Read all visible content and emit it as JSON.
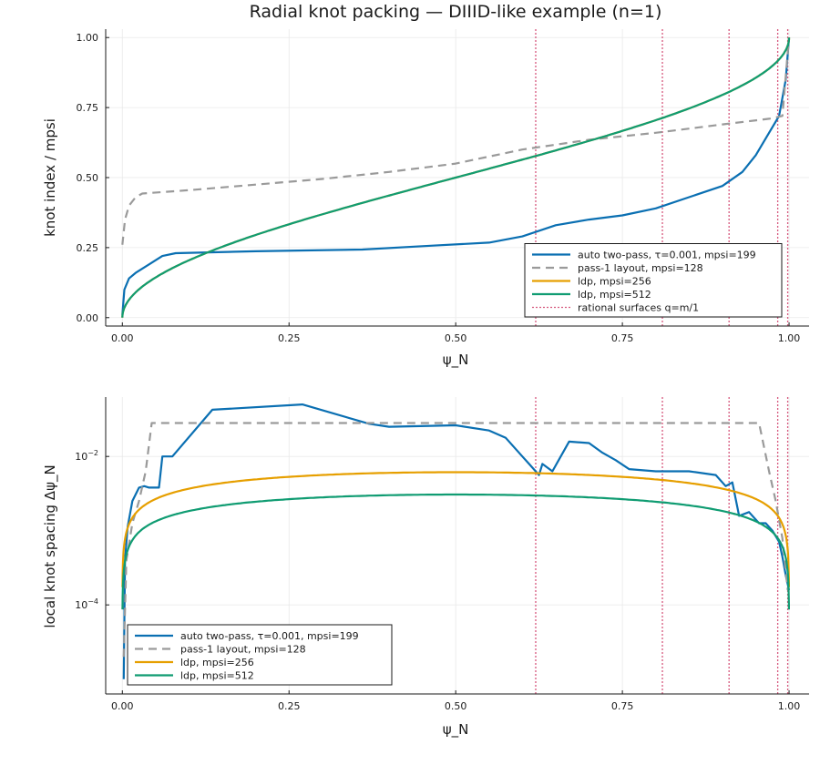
{
  "title": "Radial knot packing — DIIID-like example (n=1)",
  "colors": {
    "auto": "#0a6fb2",
    "pass1": "#9a9a9a",
    "ldp256": "#e69f00",
    "ldp512": "#109c72",
    "rational": "#d6577d"
  },
  "chart_data": [
    {
      "type": "line",
      "title": "Radial knot packing — DIIID-like example (n=1)",
      "xlabel": "ψ_N",
      "ylabel": "knot index / mpsi",
      "xlim": [
        0,
        1
      ],
      "ylim": [
        0,
        1
      ],
      "y_scale": "linear",
      "xticks": [
        "0.00",
        "0.25",
        "0.50",
        "0.75",
        "1.00"
      ],
      "yticks": [
        "0.00",
        "0.25",
        "0.50",
        "0.75",
        "1.00"
      ],
      "grid": true,
      "legend_position": "bottom-right",
      "rational_surfaces": [
        0.62,
        0.81,
        0.91,
        0.983,
        0.998
      ],
      "series": [
        {
          "name": "auto two-pass, τ=0.001, mpsi=199",
          "style": "solid",
          "color": "#0a6fb2",
          "points": [
            [
              0,
              0.01
            ],
            [
              0.003,
              0.1
            ],
            [
              0.01,
              0.14
            ],
            [
              0.02,
              0.16
            ],
            [
              0.04,
              0.19
            ],
            [
              0.06,
              0.22
            ],
            [
              0.08,
              0.23
            ],
            [
              0.2,
              0.237
            ],
            [
              0.36,
              0.243
            ],
            [
              0.45,
              0.255
            ],
            [
              0.55,
              0.268
            ],
            [
              0.6,
              0.29
            ],
            [
              0.65,
              0.33
            ],
            [
              0.7,
              0.35
            ],
            [
              0.75,
              0.365
            ],
            [
              0.8,
              0.39
            ],
            [
              0.85,
              0.43
            ],
            [
              0.9,
              0.47
            ],
            [
              0.93,
              0.52
            ],
            [
              0.95,
              0.58
            ],
            [
              0.97,
              0.66
            ],
            [
              0.985,
              0.72
            ],
            [
              0.995,
              0.85
            ],
            [
              1.0,
              1.0
            ]
          ]
        },
        {
          "name": "pass-1 layout, mpsi=128",
          "style": "dashed",
          "color": "#9a9a9a",
          "points": [
            [
              0,
              0.26
            ],
            [
              0.004,
              0.35
            ],
            [
              0.01,
              0.4
            ],
            [
              0.02,
              0.43
            ],
            [
              0.03,
              0.443
            ],
            [
              0.1,
              0.455
            ],
            [
              0.2,
              0.475
            ],
            [
              0.3,
              0.495
            ],
            [
              0.4,
              0.52
            ],
            [
              0.5,
              0.55
            ],
            [
              0.6,
              0.6
            ],
            [
              0.7,
              0.635
            ],
            [
              0.8,
              0.66
            ],
            [
              0.9,
              0.69
            ],
            [
              0.97,
              0.71
            ],
            [
              0.99,
              0.72
            ],
            [
              1.0,
              1.0
            ]
          ]
        },
        {
          "name": "ldp, mpsi=256",
          "style": "solid",
          "color": "#e69f00",
          "formula": "ldp"
        },
        {
          "name": "ldp, mpsi=512",
          "style": "solid",
          "color": "#109c72",
          "formula": "ldp"
        },
        {
          "name": "rational surfaces q=m/1",
          "style": "dotted",
          "color": "#d6577d"
        }
      ]
    },
    {
      "type": "line",
      "xlabel": "ψ_N",
      "ylabel": "local knot spacing Δψ_N",
      "xlim": [
        0,
        1
      ],
      "y_scale": "log",
      "ylim_log10": [
        -5.2,
        -1.2
      ],
      "xticks": [
        "0.00",
        "0.25",
        "0.50",
        "0.75",
        "1.00"
      ],
      "yticks_log10": [
        -4,
        -2
      ],
      "grid": true,
      "legend_position": "bottom-left",
      "rational_surfaces": [
        0.62,
        0.81,
        0.91,
        0.983,
        0.998
      ],
      "series": [
        {
          "name": "auto two-pass, τ=0.001, mpsi=199",
          "style": "solid",
          "color": "#0a6fb2",
          "points_log10": [
            [
              0.002,
              -5.0
            ],
            [
              0.004,
              -3.4
            ],
            [
              0.008,
              -2.95
            ],
            [
              0.015,
              -2.6
            ],
            [
              0.025,
              -2.42
            ],
            [
              0.033,
              -2.4
            ],
            [
              0.04,
              -2.42
            ],
            [
              0.055,
              -2.42
            ],
            [
              0.06,
              -2.0
            ],
            [
              0.075,
              -2.0
            ],
            [
              0.135,
              -1.37
            ],
            [
              0.27,
              -1.3
            ],
            [
              0.37,
              -1.56
            ],
            [
              0.4,
              -1.6
            ],
            [
              0.5,
              -1.58
            ],
            [
              0.55,
              -1.65
            ],
            [
              0.575,
              -1.75
            ],
            [
              0.6,
              -2.0
            ],
            [
              0.61,
              -2.1
            ],
            [
              0.625,
              -2.25
            ],
            [
              0.63,
              -2.1
            ],
            [
              0.645,
              -2.2
            ],
            [
              0.67,
              -1.8
            ],
            [
              0.7,
              -1.82
            ],
            [
              0.72,
              -1.95
            ],
            [
              0.74,
              -2.05
            ],
            [
              0.76,
              -2.17
            ],
            [
              0.8,
              -2.2
            ],
            [
              0.85,
              -2.2
            ],
            [
              0.89,
              -2.25
            ],
            [
              0.905,
              -2.4
            ],
            [
              0.915,
              -2.35
            ],
            [
              0.925,
              -2.8
            ],
            [
              0.94,
              -2.75
            ],
            [
              0.955,
              -2.9
            ],
            [
              0.965,
              -2.9
            ],
            [
              0.975,
              -3.0
            ],
            [
              0.985,
              -3.15
            ],
            [
              0.99,
              -3.35
            ],
            [
              0.995,
              -3.6
            ],
            [
              1.0,
              -3.8
            ]
          ]
        },
        {
          "name": "pass-1 layout, mpsi=128",
          "style": "dashed",
          "color": "#9a9a9a",
          "points_log10": [
            [
              0.002,
              -4.7
            ],
            [
              0.006,
              -3.4
            ],
            [
              0.015,
              -2.9
            ],
            [
              0.025,
              -2.6
            ],
            [
              0.035,
              -2.2
            ],
            [
              0.044,
              -1.55
            ],
            [
              0.955,
              -1.55
            ],
            [
              0.97,
              -2.2
            ],
            [
              0.98,
              -2.6
            ],
            [
              0.99,
              -3.1
            ],
            [
              0.998,
              -3.8
            ]
          ]
        },
        {
          "name": "ldp, mpsi=256",
          "style": "solid",
          "color": "#e69f00",
          "formula": "ldp"
        },
        {
          "name": "ldp, mpsi=512",
          "style": "solid",
          "color": "#109c72",
          "formula": "ldp"
        }
      ]
    }
  ]
}
